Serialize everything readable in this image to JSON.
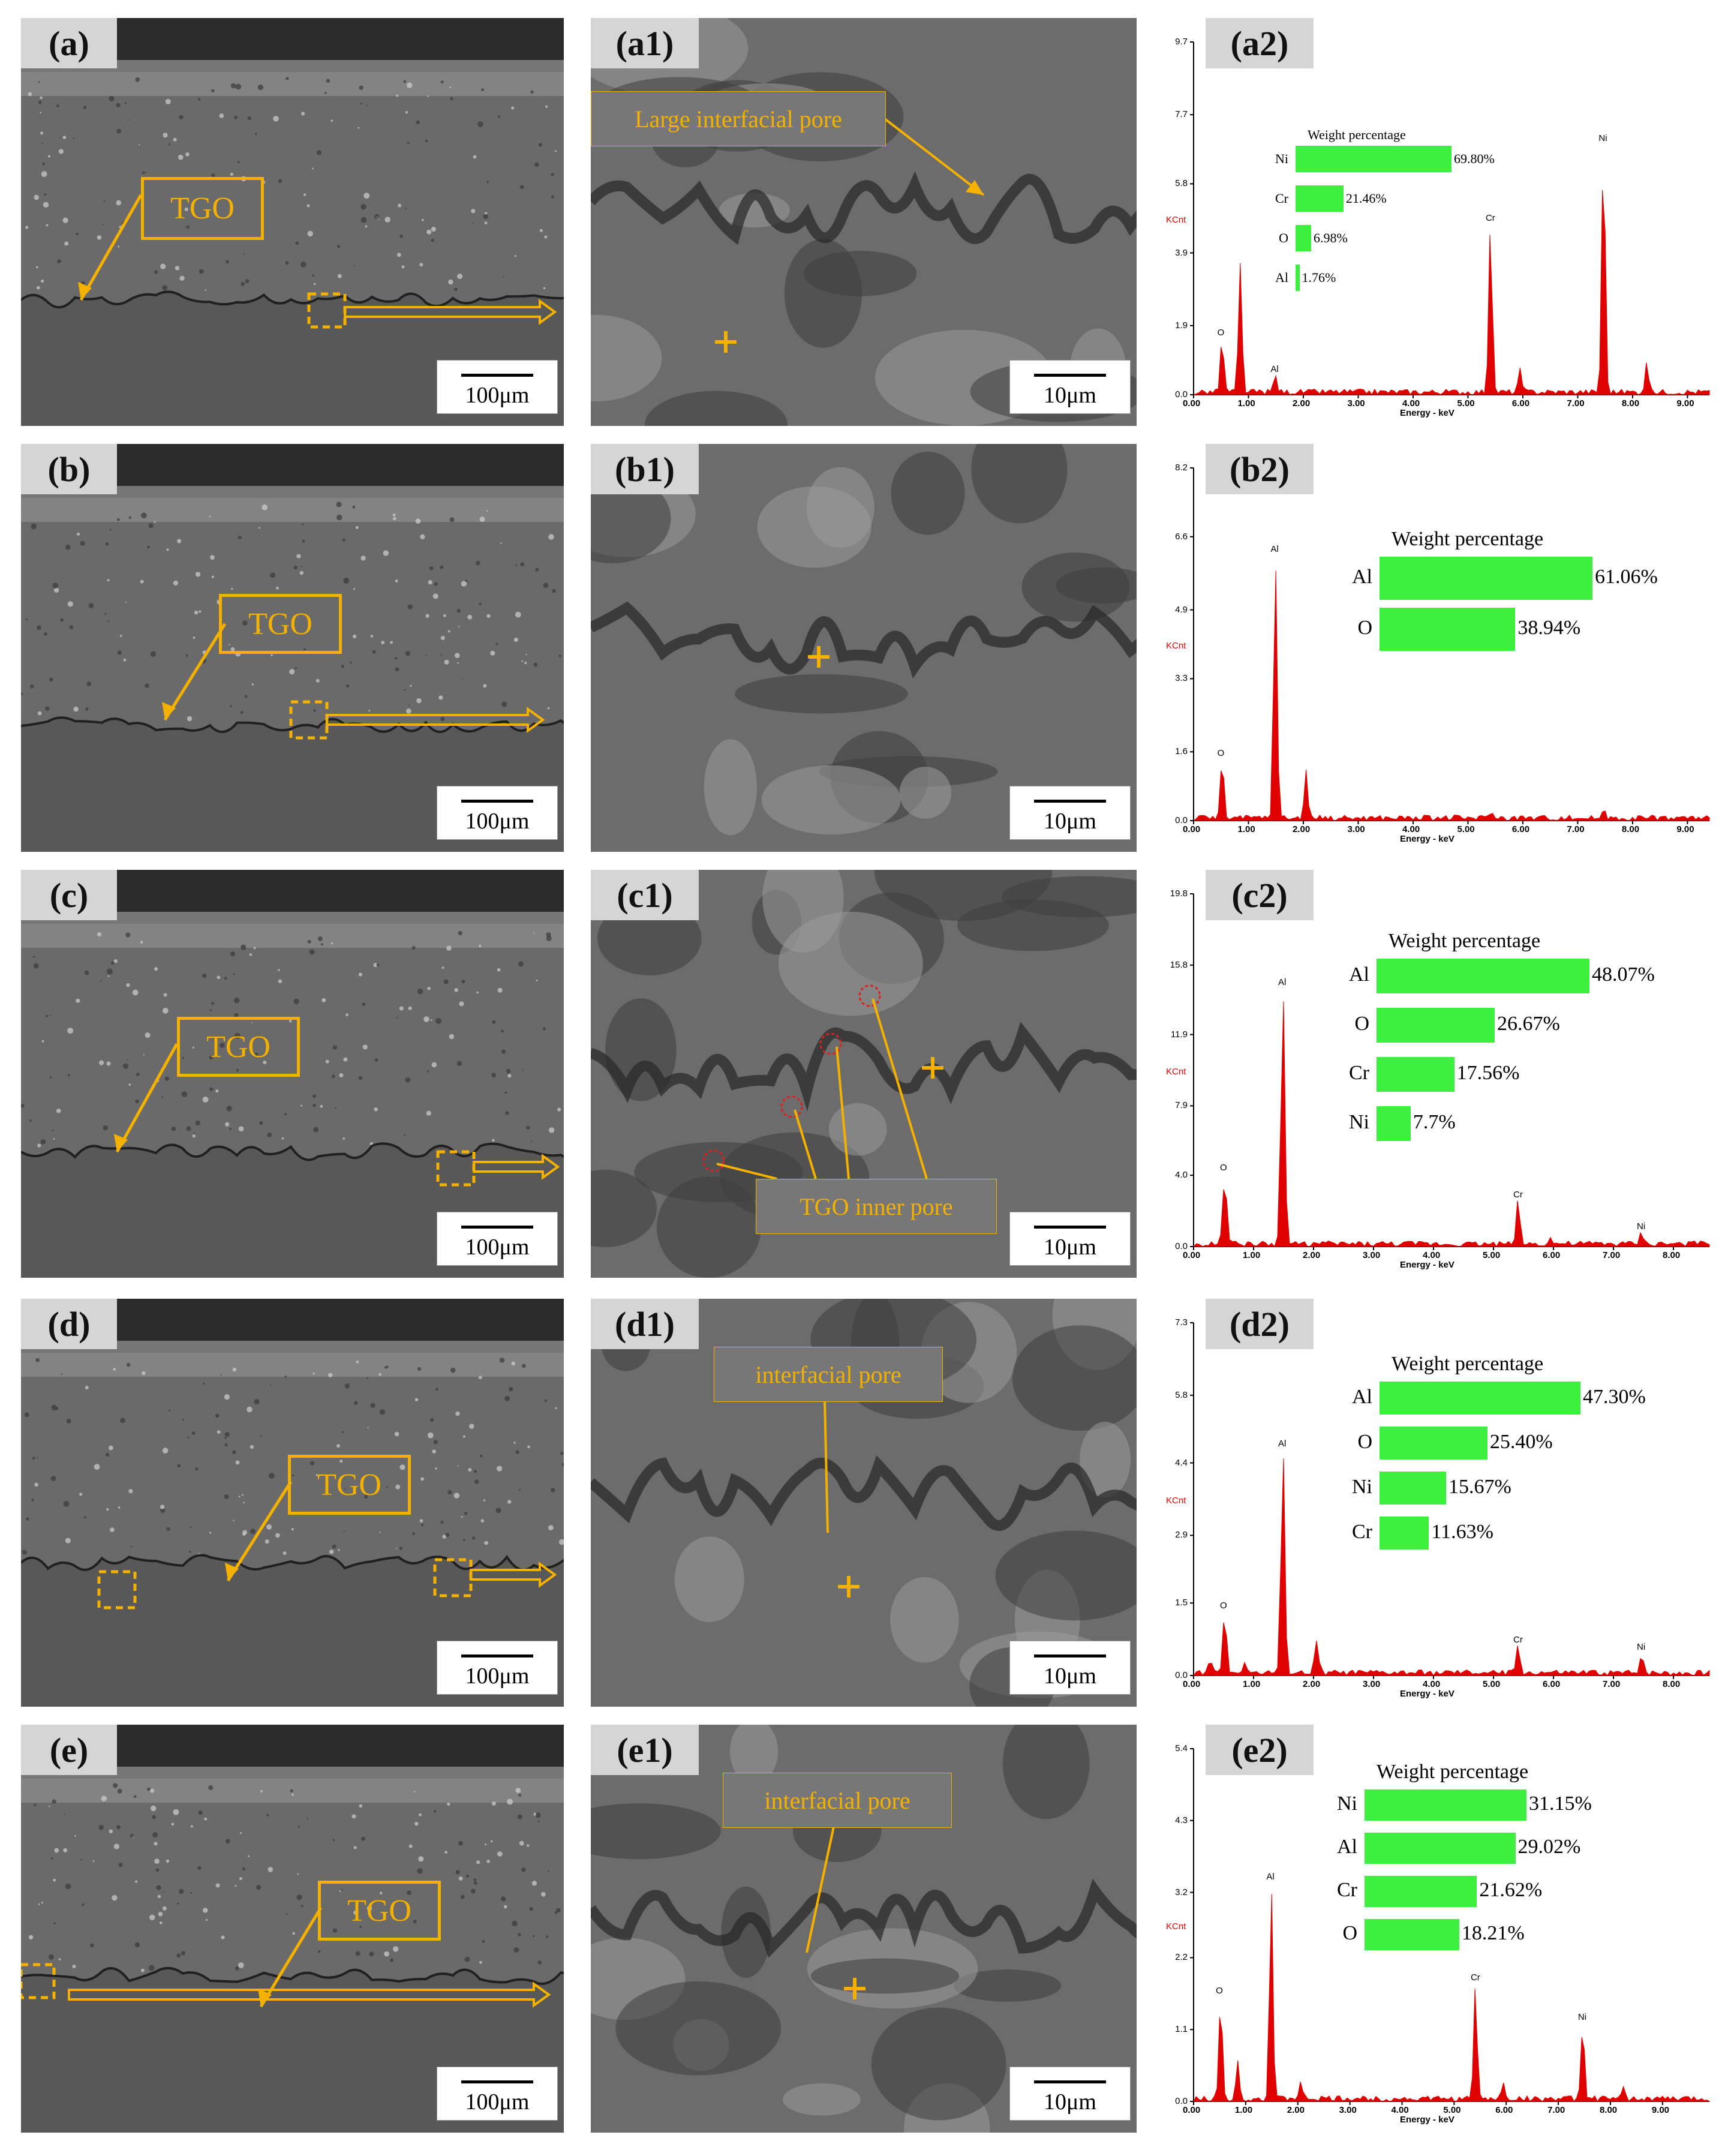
{
  "rows": [
    {
      "sem_label": "(a)",
      "sem_scale": "100μm",
      "tgo_text": "TGO",
      "zoom_label": "(a1)",
      "zoom_scale": "10μm",
      "callout": "Large interfacial pore",
      "eds_label": "(a2)"
    },
    {
      "sem_label": "(b)",
      "sem_scale": "100μm",
      "tgo_text": "TGO",
      "zoom_label": "(b1)",
      "zoom_scale": "10μm",
      "callout": "",
      "eds_label": "(b2)"
    },
    {
      "sem_label": "(c)",
      "sem_scale": "100μm",
      "tgo_text": "TGO",
      "zoom_label": "(c1)",
      "zoom_scale": "10μm",
      "callout": "TGO inner pore",
      "eds_label": "(c2)"
    },
    {
      "sem_label": "(d)",
      "sem_scale": "100μm",
      "tgo_text": "TGO",
      "zoom_label": "(d1)",
      "zoom_scale": "10μm",
      "callout": "interfacial pore",
      "eds_label": "(d2)"
    },
    {
      "sem_label": "(e)",
      "sem_scale": "100μm",
      "tgo_text": "TGO",
      "zoom_label": "(e1)",
      "zoom_scale": "10μm",
      "callout": "interfacial pore",
      "eds_label": "(e2)"
    }
  ],
  "colors": {
    "spectrum": "#e00000",
    "bar": "#3ef03e",
    "annotation": "#f5b100",
    "pore_circle": "#e02020"
  },
  "chart_data": [
    {
      "type": "bar",
      "title": "Weight percentage",
      "categories": [
        "Ni",
        "Cr",
        "O",
        "Al"
      ],
      "values": [
        69.8,
        21.46,
        6.98,
        1.76
      ],
      "value_labels": [
        "69.80%",
        "21.46%",
        "6.98%",
        "1.76%"
      ],
      "spectrum": {
        "ylabel": "KCnt",
        "xlabel": "Energy - keV",
        "yticks": [
          "0.0",
          "1.9",
          "3.9",
          "5.8",
          "7.7",
          "9.7"
        ],
        "ymax": 9.7,
        "xticks": [
          "0.00",
          "1.00",
          "2.00",
          "3.00",
          "4.00",
          "5.00",
          "6.00",
          "7.00",
          "8.00",
          "9.00"
        ],
        "xmax": 9.4,
        "peaks": [
          {
            "x": 0.52,
            "y": 1.45,
            "label": "O"
          },
          {
            "x": 0.85,
            "y": 3.5,
            "label": ""
          },
          {
            "x": 1.49,
            "y": 0.45,
            "label": "Al"
          },
          {
            "x": 5.41,
            "y": 4.6,
            "label": "Cr"
          },
          {
            "x": 5.95,
            "y": 0.6,
            "label": ""
          },
          {
            "x": 7.47,
            "y": 6.8,
            "label": "Ni"
          },
          {
            "x": 8.26,
            "y": 0.8,
            "label": ""
          }
        ]
      }
    },
    {
      "type": "bar",
      "title": "Weight percentage",
      "categories": [
        "Al",
        "O"
      ],
      "values": [
        61.06,
        38.94
      ],
      "value_labels": [
        "61.06%",
        "38.94%"
      ],
      "spectrum": {
        "ylabel": "KCnt",
        "xlabel": "Energy - keV",
        "yticks": [
          "0.0",
          "1.6",
          "3.3",
          "4.9",
          "6.6",
          "8.2"
        ],
        "ymax": 8.2,
        "xticks": [
          "0.00",
          "1.00",
          "2.00",
          "3.00",
          "4.00",
          "5.00",
          "6.00",
          "7.00",
          "8.00",
          "9.00"
        ],
        "xmax": 9.4,
        "peaks": [
          {
            "x": 0.52,
            "y": 1.35,
            "label": "O"
          },
          {
            "x": 1.49,
            "y": 6.1,
            "label": "Al"
          },
          {
            "x": 2.05,
            "y": 1.1,
            "label": ""
          },
          {
            "x": 5.41,
            "y": 0.15,
            "label": ""
          },
          {
            "x": 7.47,
            "y": 0.15,
            "label": ""
          }
        ]
      }
    },
    {
      "type": "bar",
      "title": "Weight percentage",
      "categories": [
        "Al",
        "O",
        "Cr",
        "Ni"
      ],
      "values": [
        48.07,
        26.67,
        17.56,
        7.7
      ],
      "value_labels": [
        "48.07%",
        "26.67%",
        "17.56%",
        "7.7%"
      ],
      "spectrum": {
        "ylabel": "KCnt",
        "xlabel": "Energy - keV",
        "yticks": [
          "0.0",
          "4.0",
          "7.9",
          "11.9",
          "15.8",
          "19.8"
        ],
        "ymax": 19.8,
        "xticks": [
          "0.00",
          "1.00",
          "2.00",
          "3.00",
          "4.00",
          "5.00",
          "6.00",
          "7.00",
          "8.00"
        ],
        "xmax": 8.6,
        "peaks": [
          {
            "x": 0.52,
            "y": 3.9,
            "label": "O"
          },
          {
            "x": 1.49,
            "y": 14.3,
            "label": "Al"
          },
          {
            "x": 5.41,
            "y": 2.4,
            "label": "Cr"
          },
          {
            "x": 5.95,
            "y": 0.3,
            "label": ""
          },
          {
            "x": 7.47,
            "y": 0.6,
            "label": "Ni"
          }
        ]
      }
    },
    {
      "type": "bar",
      "title": "Weight percentage",
      "categories": [
        "Al",
        "O",
        "Ni",
        "Cr"
      ],
      "values": [
        47.3,
        25.4,
        15.67,
        11.63
      ],
      "value_labels": [
        "47.30%",
        "25.40%",
        "15.67%",
        "11.63%"
      ],
      "spectrum": {
        "ylabel": "KCnt",
        "xlabel": "Energy - keV",
        "yticks": [
          "0.0",
          "1.5",
          "2.9",
          "4.4",
          "5.8",
          "7.3"
        ],
        "ymax": 7.3,
        "xticks": [
          "0.00",
          "1.00",
          "2.00",
          "3.00",
          "4.00",
          "5.00",
          "6.00",
          "7.00",
          "8.00"
        ],
        "xmax": 8.6,
        "peaks": [
          {
            "x": 0.28,
            "y": 0.25,
            "label": ""
          },
          {
            "x": 0.52,
            "y": 1.25,
            "label": "O"
          },
          {
            "x": 0.85,
            "y": 0.25,
            "label": ""
          },
          {
            "x": 1.49,
            "y": 4.6,
            "label": "Al"
          },
          {
            "x": 2.05,
            "y": 0.65,
            "label": ""
          },
          {
            "x": 5.41,
            "y": 0.55,
            "label": "Cr"
          },
          {
            "x": 7.47,
            "y": 0.4,
            "label": "Ni"
          }
        ]
      }
    },
    {
      "type": "bar",
      "title": "Weight percentage",
      "categories": [
        "Ni",
        "Al",
        "Cr",
        "O"
      ],
      "values": [
        31.15,
        29.02,
        21.62,
        18.21
      ],
      "value_labels": [
        "31.15%",
        "29.02%",
        "21.62%",
        "18.21%"
      ],
      "spectrum": {
        "ylabel": "KCnt",
        "xlabel": "Energy - keV",
        "yticks": [
          "0.0",
          "1.1",
          "2.2",
          "3.2",
          "4.3",
          "5.4"
        ],
        "ymax": 5.4,
        "xticks": [
          "0.00",
          "1.00",
          "2.00",
          "3.00",
          "4.00",
          "5.00",
          "6.00",
          "7.00",
          "8.00",
          "9.00"
        ],
        "xmax": 9.9,
        "peaks": [
          {
            "x": 0.52,
            "y": 1.55,
            "label": "O"
          },
          {
            "x": 0.85,
            "y": 0.6,
            "label": ""
          },
          {
            "x": 1.49,
            "y": 3.3,
            "label": "Al"
          },
          {
            "x": 2.05,
            "y": 0.25,
            "label": ""
          },
          {
            "x": 5.41,
            "y": 1.75,
            "label": "Cr"
          },
          {
            "x": 5.95,
            "y": 0.25,
            "label": ""
          },
          {
            "x": 7.47,
            "y": 1.15,
            "label": "Ni"
          },
          {
            "x": 8.26,
            "y": 0.15,
            "label": ""
          }
        ]
      }
    }
  ]
}
